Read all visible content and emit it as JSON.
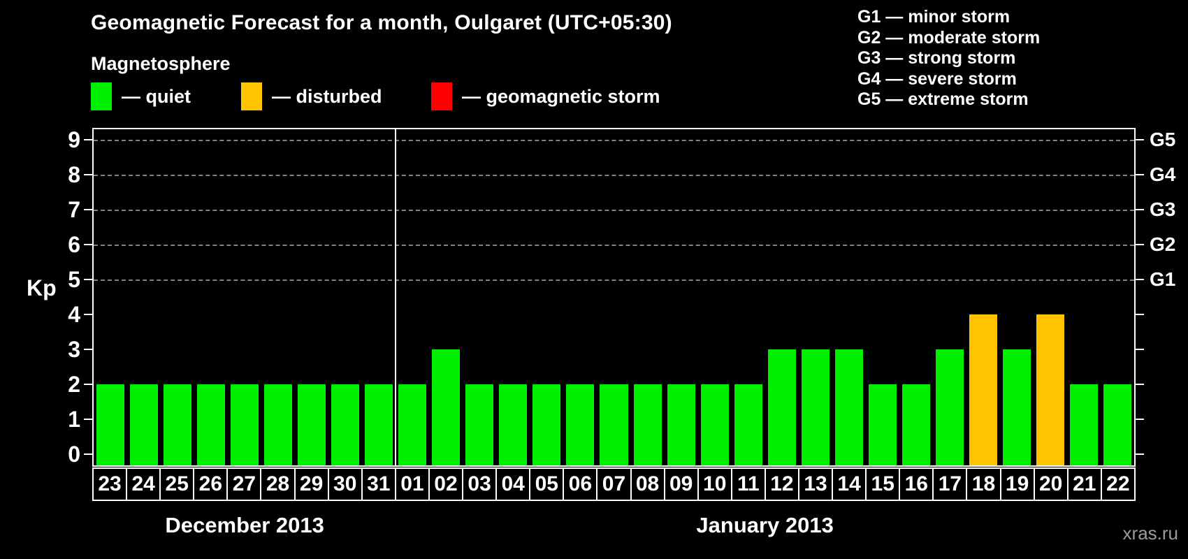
{
  "title": "Geomagnetic Forecast for a month, Oulgaret (UTC+05:30)",
  "magnetosphere": {
    "heading": "Magnetosphere",
    "items": [
      {
        "status": "quiet",
        "label": "— quiet",
        "color": "#00ee00"
      },
      {
        "status": "disturbed",
        "label": "— disturbed",
        "color": "#ffc400"
      },
      {
        "status": "storm",
        "label": "— geomagnetic storm",
        "color": "#ff0000"
      }
    ]
  },
  "g_legend": {
    "lines": [
      "G1 — minor storm",
      "G2 — moderate storm",
      "G3 — strong storm",
      "G4 — severe storm",
      "G5 — extreme storm"
    ]
  },
  "watermark": "xras.ru",
  "chart_data": {
    "type": "bar",
    "title": "Geomagnetic Forecast for a month, Oulgaret (UTC+05:30)",
    "ylabel": "Kp",
    "ylim": [
      0,
      9
    ],
    "y_ticks": [
      0,
      1,
      2,
      3,
      4,
      5,
      6,
      7,
      8,
      9
    ],
    "grid": "dashed horizontal lines at Kp 5-9 aligned with G1-G5",
    "legend_position": "top",
    "right_axis_labels": [
      {
        "label": "G1",
        "kp": 5
      },
      {
        "label": "G2",
        "kp": 6
      },
      {
        "label": "G3",
        "kp": 7
      },
      {
        "label": "G4",
        "kp": 8
      },
      {
        "label": "G5",
        "kp": 9
      }
    ],
    "status_colors": {
      "quiet": "#00ee00",
      "disturbed": "#ffc400",
      "storm": "#ff0000"
    },
    "months": [
      {
        "label": "December 2013",
        "days": [
          {
            "day": "23",
            "kp": 2,
            "status": "quiet"
          },
          {
            "day": "24",
            "kp": 2,
            "status": "quiet"
          },
          {
            "day": "25",
            "kp": 2,
            "status": "quiet"
          },
          {
            "day": "26",
            "kp": 2,
            "status": "quiet"
          },
          {
            "day": "27",
            "kp": 2,
            "status": "quiet"
          },
          {
            "day": "28",
            "kp": 2,
            "status": "quiet"
          },
          {
            "day": "29",
            "kp": 2,
            "status": "quiet"
          },
          {
            "day": "30",
            "kp": 2,
            "status": "quiet"
          },
          {
            "day": "31",
            "kp": 2,
            "status": "quiet"
          }
        ]
      },
      {
        "label": "January 2013",
        "days": [
          {
            "day": "01",
            "kp": 2,
            "status": "quiet"
          },
          {
            "day": "02",
            "kp": 3,
            "status": "quiet"
          },
          {
            "day": "03",
            "kp": 2,
            "status": "quiet"
          },
          {
            "day": "04",
            "kp": 2,
            "status": "quiet"
          },
          {
            "day": "05",
            "kp": 2,
            "status": "quiet"
          },
          {
            "day": "06",
            "kp": 2,
            "status": "quiet"
          },
          {
            "day": "07",
            "kp": 2,
            "status": "quiet"
          },
          {
            "day": "08",
            "kp": 2,
            "status": "quiet"
          },
          {
            "day": "09",
            "kp": 2,
            "status": "quiet"
          },
          {
            "day": "10",
            "kp": 2,
            "status": "quiet"
          },
          {
            "day": "11",
            "kp": 2,
            "status": "quiet"
          },
          {
            "day": "12",
            "kp": 3,
            "status": "quiet"
          },
          {
            "day": "13",
            "kp": 3,
            "status": "quiet"
          },
          {
            "day": "14",
            "kp": 3,
            "status": "quiet"
          },
          {
            "day": "15",
            "kp": 2,
            "status": "quiet"
          },
          {
            "day": "16",
            "kp": 2,
            "status": "quiet"
          },
          {
            "day": "17",
            "kp": 3,
            "status": "quiet"
          },
          {
            "day": "18",
            "kp": 4,
            "status": "disturbed"
          },
          {
            "day": "19",
            "kp": 3,
            "status": "quiet"
          },
          {
            "day": "20",
            "kp": 4,
            "status": "disturbed"
          },
          {
            "day": "21",
            "kp": 2,
            "status": "quiet"
          },
          {
            "day": "22",
            "kp": 2,
            "status": "quiet"
          }
        ]
      }
    ]
  }
}
